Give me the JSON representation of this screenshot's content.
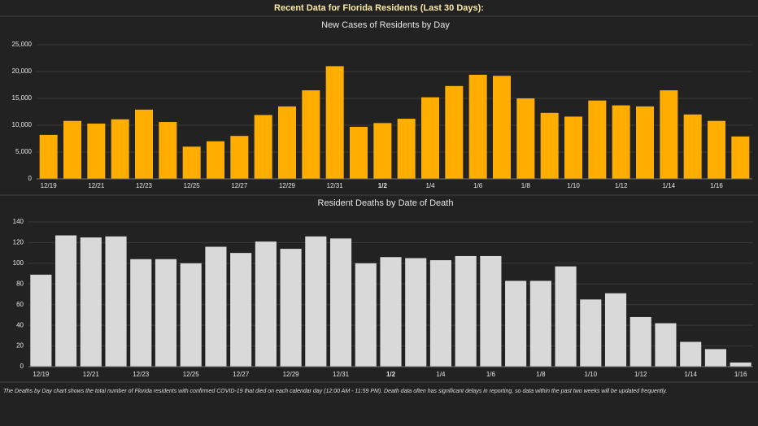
{
  "header": {
    "title": "Recent Data for Florida Residents (Last 30 Days):"
  },
  "chart_data": [
    {
      "type": "bar",
      "title": "New Cases of Residents by Day",
      "color": "#ffae00",
      "categories": [
        "12/19",
        null,
        "12/21",
        null,
        "12/23",
        null,
        "12/25",
        null,
        "12/27",
        null,
        "12/29",
        null,
        "12/31",
        null,
        "1/2",
        null,
        "1/4",
        null,
        "1/6",
        null,
        "1/8",
        null,
        "1/10",
        null,
        "1/12",
        null,
        "1/14",
        null,
        "1/16",
        null
      ],
      "values": [
        8200,
        10800,
        10300,
        11100,
        12900,
        10600,
        6000,
        7000,
        8000,
        11900,
        13500,
        16500,
        21000,
        9700,
        10400,
        11200,
        15200,
        17300,
        19400,
        19200,
        15000,
        12300,
        11600,
        14600,
        13700,
        13500,
        16500,
        12000,
        10800,
        7900
      ],
      "ylim": [
        0,
        25000
      ],
      "yticks": [
        0,
        {
          "value": 5000,
          "label": "5,000"
        },
        {
          "value": 10000,
          "label": "10,000"
        },
        {
          "value": 15000,
          "label": "15,000"
        },
        {
          "value": 20000,
          "label": "20,000"
        },
        {
          "value": 25000,
          "label": "25,000"
        }
      ],
      "grid": true
    },
    {
      "type": "bar",
      "title": "Resident Deaths by Date of Death",
      "color": "#d9d9d9",
      "categories": [
        "12/19",
        null,
        "12/21",
        null,
        "12/23",
        null,
        "12/25",
        null,
        "12/27",
        null,
        "12/29",
        null,
        "12/31",
        null,
        "1/2",
        null,
        "1/4",
        null,
        "1/6",
        null,
        "1/8",
        null,
        "1/10",
        null,
        "1/12",
        null,
        "1/14",
        null,
        "1/16"
      ],
      "values": [
        89,
        127,
        125,
        126,
        104,
        104,
        100,
        116,
        110,
        121,
        114,
        126,
        124,
        100,
        106,
        105,
        103,
        107,
        107,
        83,
        83,
        97,
        65,
        71,
        48,
        42,
        24,
        17,
        4
      ],
      "ylim": [
        0,
        140
      ],
      "yticks": [
        0,
        20,
        40,
        60,
        80,
        100,
        120,
        140
      ],
      "grid": true
    }
  ],
  "footnote": "The Deaths by Day chart shows the total number of Florida residents with confirmed COVID-19 that died on each calendar day (12:00 AM - 11:59 PM). Death data often has significant delays in reporting, so data within the past two weeks will be updated frequently."
}
